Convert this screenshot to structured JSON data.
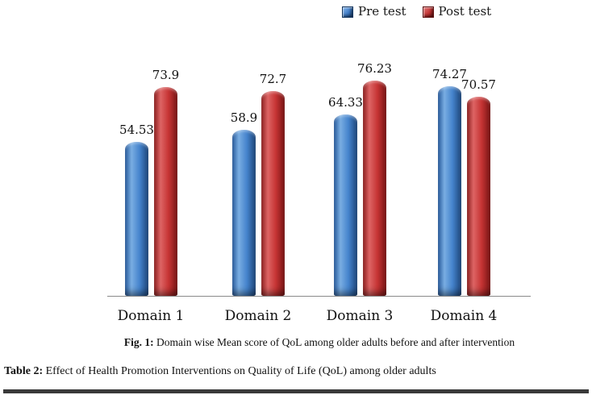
{
  "chart_data": {
    "type": "bar",
    "categories": [
      "Domain 1",
      "Domain 2",
      "Domain 3",
      "Domain 4"
    ],
    "series": [
      {
        "name": "Pre test",
        "color": "#3b78c4",
        "values": [
          54.53,
          58.9,
          64.33,
          74.27
        ],
        "labels": [
          "54.53",
          "58.9",
          "64.33",
          "74.27"
        ]
      },
      {
        "name": "Post test",
        "color": "#c33232",
        "values": [
          73.9,
          72.7,
          76.23,
          70.57
        ],
        "labels": [
          "73.9",
          "72.7",
          "76.23",
          "70.57"
        ]
      }
    ],
    "title": "",
    "xlabel": "",
    "ylabel": "",
    "ylim": [
      0,
      80
    ],
    "grid": false,
    "legend_position": "top",
    "value_labels_shown": true
  },
  "figure_caption": {
    "label": "Fig. 1:",
    "text": "Domain wise Mean score of QoL among older adults before and after intervention"
  },
  "table_caption": {
    "label": "Table 2:",
    "text": "Effect of Health Promotion Interventions on Quality of Life (QoL) among older adults"
  },
  "colors": {
    "pre_bar": "#3b78c4",
    "post_bar": "#c33232",
    "axis_line": "#8a8a8a",
    "table_rule": "#3a3a3a",
    "text": "#1a1a1a"
  }
}
